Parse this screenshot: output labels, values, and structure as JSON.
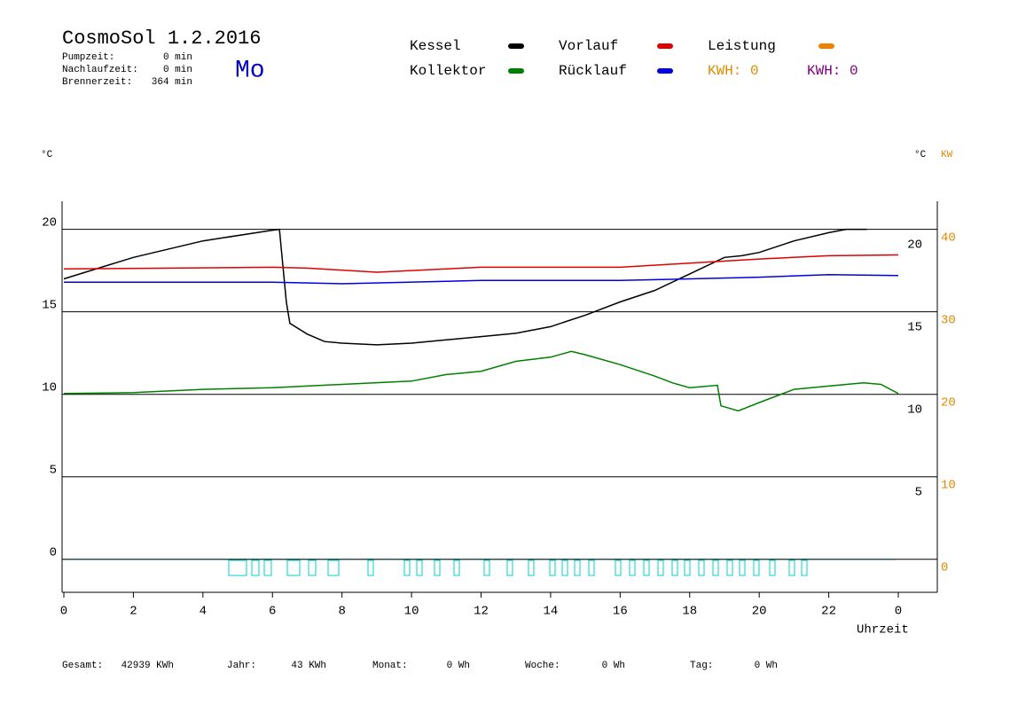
{
  "header": {
    "title": "CosmoSol 1.2.2016",
    "day": "Mo",
    "stats": [
      {
        "label": "Pumpzeit:",
        "value": "0 min"
      },
      {
        "label": "Nachlaufzeit:",
        "value": "0 min"
      },
      {
        "label": "Brennerzeit:",
        "value": "364 min"
      }
    ]
  },
  "chart_data": {
    "type": "line",
    "ylabel": "°C",
    "y2label": "°C",
    "kwlabel": "KW",
    "xlabel": "Uhrzeit",
    "xlim": [
      0,
      24
    ],
    "xticks": [
      0,
      2,
      4,
      6,
      8,
      10,
      12,
      14,
      16,
      18,
      20,
      22,
      {
        "value": 24,
        "label": "0"
      }
    ],
    "ylim": [
      -2,
      21.7
    ],
    "yticks": [
      0,
      5,
      10,
      15,
      20
    ],
    "y2lim": [
      -2,
      21.7
    ],
    "y2ticks": [
      5,
      10,
      15,
      20
    ],
    "kwlim": [
      -4,
      43.4
    ],
    "kwticks": [
      0,
      10,
      20,
      30,
      40
    ],
    "grid": true,
    "series": [
      {
        "name": "Kessel",
        "color": "#000000",
        "x": [
          0,
          2,
          4,
          6,
          6.2,
          6.3,
          6.4,
          6.5,
          7,
          7.5,
          8,
          9,
          10,
          11,
          12,
          13,
          14,
          15,
          16,
          17,
          18,
          19,
          19.5,
          20,
          21,
          22,
          22.5,
          23.1
        ],
        "values": [
          17.0,
          18.3,
          19.3,
          19.95,
          20.0,
          17.8,
          15.6,
          14.3,
          13.65,
          13.2,
          13.1,
          13.0,
          13.1,
          13.3,
          13.5,
          13.7,
          14.1,
          14.8,
          15.6,
          16.3,
          17.3,
          18.3,
          18.4,
          18.6,
          19.3,
          19.8,
          20.0,
          20.0
        ]
      },
      {
        "name": "Kollektor",
        "color": "#008000",
        "x": [
          0,
          2,
          4,
          6,
          8,
          10,
          11,
          12,
          13,
          14,
          14.6,
          15,
          16,
          17,
          17.5,
          18,
          18.8,
          18.9,
          19.4,
          20,
          21,
          22,
          23,
          23.5,
          24
        ],
        "values": [
          10.05,
          10.1,
          10.3,
          10.4,
          10.6,
          10.8,
          11.2,
          11.4,
          12.0,
          12.25,
          12.6,
          12.4,
          11.8,
          11.1,
          10.7,
          10.4,
          10.55,
          9.3,
          9.0,
          9.5,
          10.3,
          10.5,
          10.7,
          10.6,
          10.05
        ]
      },
      {
        "name": "Vorlauf",
        "color": "#e00000",
        "x": [
          0,
          6,
          7,
          9,
          12,
          16,
          18,
          20,
          22,
          24
        ],
        "values": [
          17.6,
          17.7,
          17.65,
          17.4,
          17.7,
          17.7,
          17.95,
          18.2,
          18.4,
          18.45
        ]
      },
      {
        "name": "Rücklauf",
        "color": "#0000e0",
        "x": [
          0,
          6,
          8,
          12,
          16,
          18,
          20,
          22,
          24
        ],
        "values": [
          16.8,
          16.8,
          16.7,
          16.9,
          16.9,
          17.0,
          17.1,
          17.25,
          17.2
        ]
      }
    ],
    "extra_legend": [
      {
        "name": "Leistung",
        "color": "#f08000"
      }
    ],
    "kwh": [
      {
        "label": "KWH: 0",
        "color": "#e08a00"
      },
      {
        "label": "KWH: 0",
        "color": "#800080"
      }
    ]
  },
  "footer": [
    {
      "label": "Gesamt:",
      "value": "42939 KWh"
    },
    {
      "label": "Jahr:",
      "value": "43 KWh"
    },
    {
      "label": "Monat:",
      "value": "0 Wh"
    },
    {
      "label": "Woche:",
      "value": "0 Wh"
    },
    {
      "label": "Tag:",
      "value": "0 Wh"
    }
  ]
}
